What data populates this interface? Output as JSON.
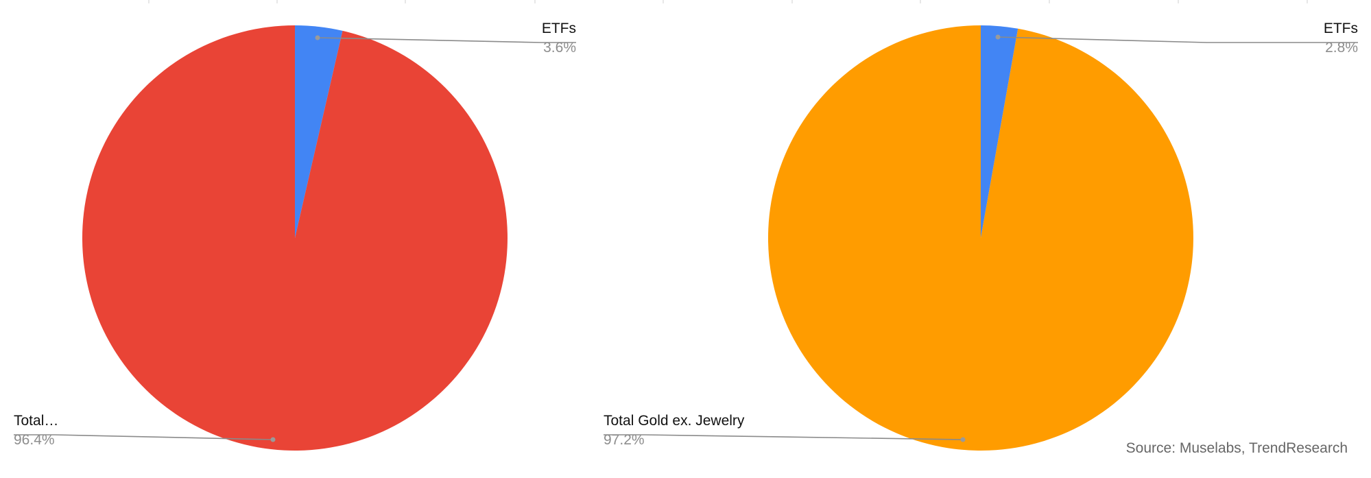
{
  "source": "Source: Muselabs, TrendResearch",
  "chart_data": [
    {
      "type": "pie",
      "title": "",
      "slices": [
        {
          "label": "ETFs",
          "value": 3.6,
          "display": "3.6%",
          "color": "#4285F4"
        },
        {
          "label": "Total…",
          "value": 96.4,
          "display": "96.4%",
          "color": "#E94436"
        }
      ],
      "start_angle_deg": 0,
      "direction": "clockwise"
    },
    {
      "type": "pie",
      "title": "",
      "slices": [
        {
          "label": "ETFs",
          "value": 2.8,
          "display": "2.8%",
          "color": "#4285F4"
        },
        {
          "label": "Total Gold ex. Jewelry",
          "value": 97.2,
          "display": "97.2%",
          "color": "#FF9C00"
        }
      ],
      "start_angle_deg": 0,
      "direction": "clockwise"
    }
  ]
}
